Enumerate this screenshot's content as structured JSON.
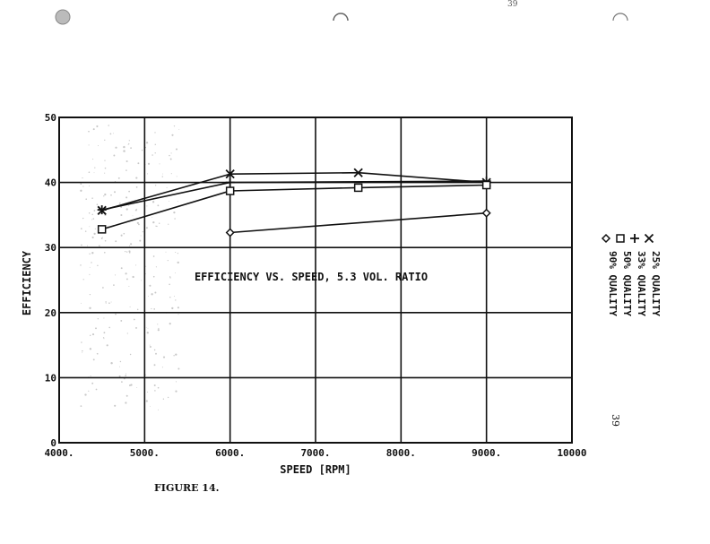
{
  "figure_caption": "FIGURE 14.",
  "page_number": "39",
  "top_mark": "39",
  "chart_data": {
    "type": "line",
    "title": "EFFICIENCY VS. SPEED, 5.3 VOL. RATIO",
    "xlabel": "SPEED [RPM]",
    "ylabel": "EFFICIENCY",
    "xlim": [
      4000,
      10000
    ],
    "ylim": [
      0,
      50
    ],
    "xticks": [
      4000,
      5000,
      6000,
      7000,
      8000,
      9000,
      10000
    ],
    "xtick_labels": [
      "4000.",
      "5000.",
      "6000.",
      "7000.",
      "8000.",
      "9000.",
      "10000"
    ],
    "yticks": [
      0,
      10,
      20,
      30,
      40,
      50
    ],
    "ytick_labels": [
      "0",
      "10",
      "20",
      "30",
      "40",
      "50"
    ],
    "grid": true,
    "legend_position": "right, rotated",
    "series": [
      {
        "name": "25% QUALITY",
        "marker": "x",
        "marker_symbol": "✕",
        "points": [
          [
            4500,
            35.7
          ],
          [
            6000,
            41.3
          ],
          [
            7500,
            41.5
          ],
          [
            9000,
            40.0
          ]
        ]
      },
      {
        "name": "33% QUALITY",
        "marker": "+",
        "marker_symbol": "+",
        "points": [
          [
            4500,
            35.8
          ],
          [
            6000,
            40.0
          ],
          [
            9000,
            40.2
          ]
        ]
      },
      {
        "name": "50% QUALITY",
        "marker": "square",
        "marker_symbol": "□",
        "points": [
          [
            4500,
            32.8
          ],
          [
            6000,
            38.7
          ],
          [
            7500,
            39.2
          ],
          [
            9000,
            39.6
          ]
        ]
      },
      {
        "name": "90% QUALITY",
        "marker": "diamond",
        "marker_symbol": "◇",
        "points": [
          [
            6000,
            32.3
          ],
          [
            9000,
            35.3
          ]
        ]
      }
    ]
  }
}
